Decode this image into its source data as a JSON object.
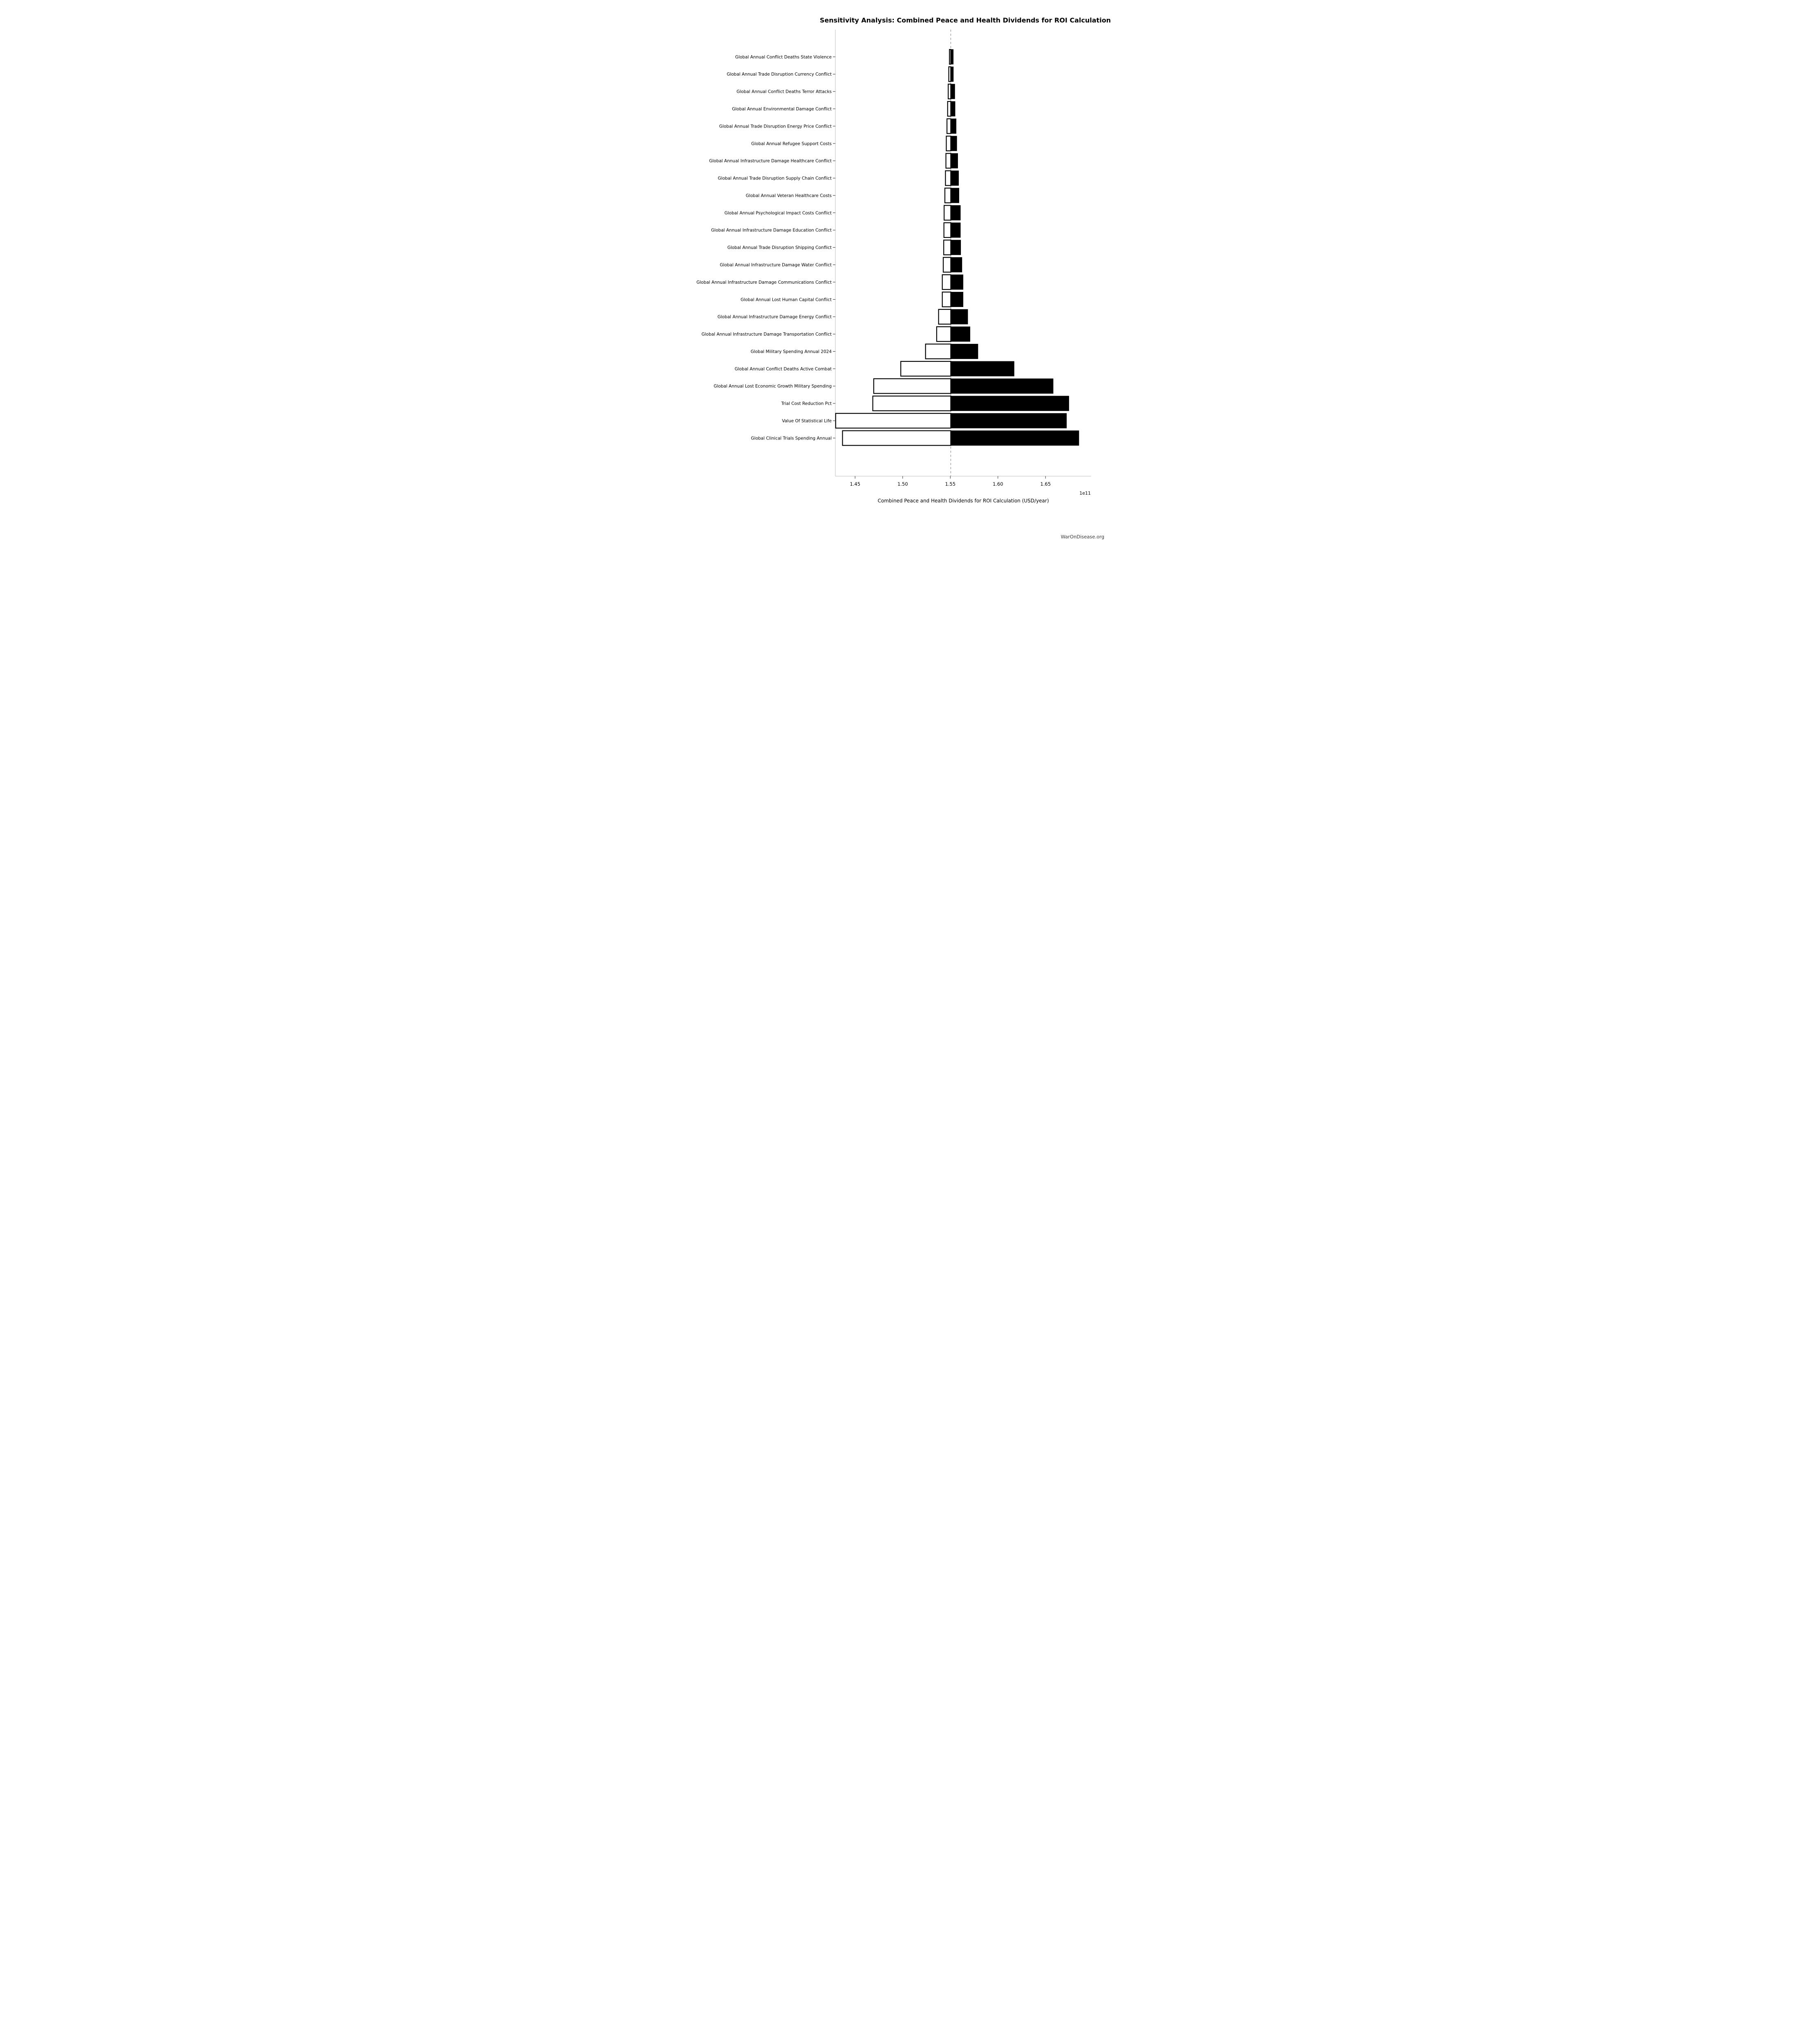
{
  "page": {
    "background": "#ffffff"
  },
  "footer": {
    "brand": "WarOnDisease.org"
  },
  "chart_data": {
    "type": "bar",
    "variant": "tornado-sensitivity-horizontal",
    "title": "Sensitivity Analysis: Combined Peace and Health Dividends for ROI Calculation",
    "xlabel": "Combined Peace and Health Dividends for ROI Calculation (USD/year)",
    "ylabel": "",
    "axis_offset_label": "1e11",
    "value_scale": 100000000000.0,
    "units_note": "all values below are in units of 1e11 USD/year, matching the axis offset label",
    "baseline": 1.5505,
    "xlim": [
      1.4285,
      1.698
    ],
    "xticks": [
      1.45,
      1.5,
      1.55,
      1.6,
      1.65
    ],
    "xtick_labels": [
      "1.45",
      "1.50",
      "1.55",
      "1.60",
      "1.65"
    ],
    "grid": false,
    "legend": null,
    "categories": [
      "Global Annual Conflict Deaths State Violence",
      "Global Annual Trade Disruption Currency Conflict",
      "Global Annual Conflict Deaths Terror Attacks",
      "Global Annual Environmental Damage Conflict",
      "Global Annual Trade Disruption Energy Price Conflict",
      "Global Annual Refugee Support Costs",
      "Global Annual Infrastructure Damage Healthcare Conflict",
      "Global Annual Trade Disruption Supply Chain Conflict",
      "Global Annual Veteran Healthcare Costs",
      "Global Annual Psychological Impact Costs Conflict",
      "Global Annual Infrastructure Damage Education Conflict",
      "Global Annual Trade Disruption Shipping Conflict",
      "Global Annual Infrastructure Damage Water Conflict",
      "Global Annual Infrastructure Damage Communications Conflict",
      "Global Annual Lost Human Capital Conflict",
      "Global Annual Infrastructure Damage Energy Conflict",
      "Global Annual Infrastructure Damage Transportation Conflict",
      "Global Military Spending Annual 2024",
      "Global Annual Conflict Deaths Active Combat",
      "Global Annual Lost Economic Growth Military Spending",
      "Trial Cost Reduction Pct",
      "Value Of Statistical Life",
      "Global Clinical Trials Spending Annual"
    ],
    "series": [
      {
        "name": "Low case (white bar, left of baseline)",
        "values": [
          1.5491,
          1.5484,
          1.5478,
          1.5472,
          1.5465,
          1.5458,
          1.5454,
          1.5449,
          1.5443,
          1.5435,
          1.5433,
          1.5431,
          1.5426,
          1.5416,
          1.5416,
          1.5377,
          1.5357,
          1.524,
          1.498,
          1.4696,
          1.4686,
          1.4296,
          1.4368
        ]
      },
      {
        "name": "High case (black bar, right of baseline)",
        "values": [
          1.5531,
          1.5532,
          1.5547,
          1.555,
          1.5561,
          1.5568,
          1.5578,
          1.5587,
          1.5591,
          1.5606,
          1.5606,
          1.5609,
          1.5622,
          1.5634,
          1.5634,
          1.5683,
          1.5707,
          1.579,
          1.617,
          1.658,
          1.6745,
          1.672,
          1.685
        ]
      }
    ],
    "colors": {
      "bar_high_fill": "#000000",
      "bar_low_fill": "#ffffff",
      "bar_edge": "#000000",
      "baseline_dash": "#7f7f7f",
      "spine": "#cccccc",
      "tick": "#262626",
      "text": "#000000",
      "footer_text": "#3a3a3a",
      "background": "#ffffff"
    }
  }
}
